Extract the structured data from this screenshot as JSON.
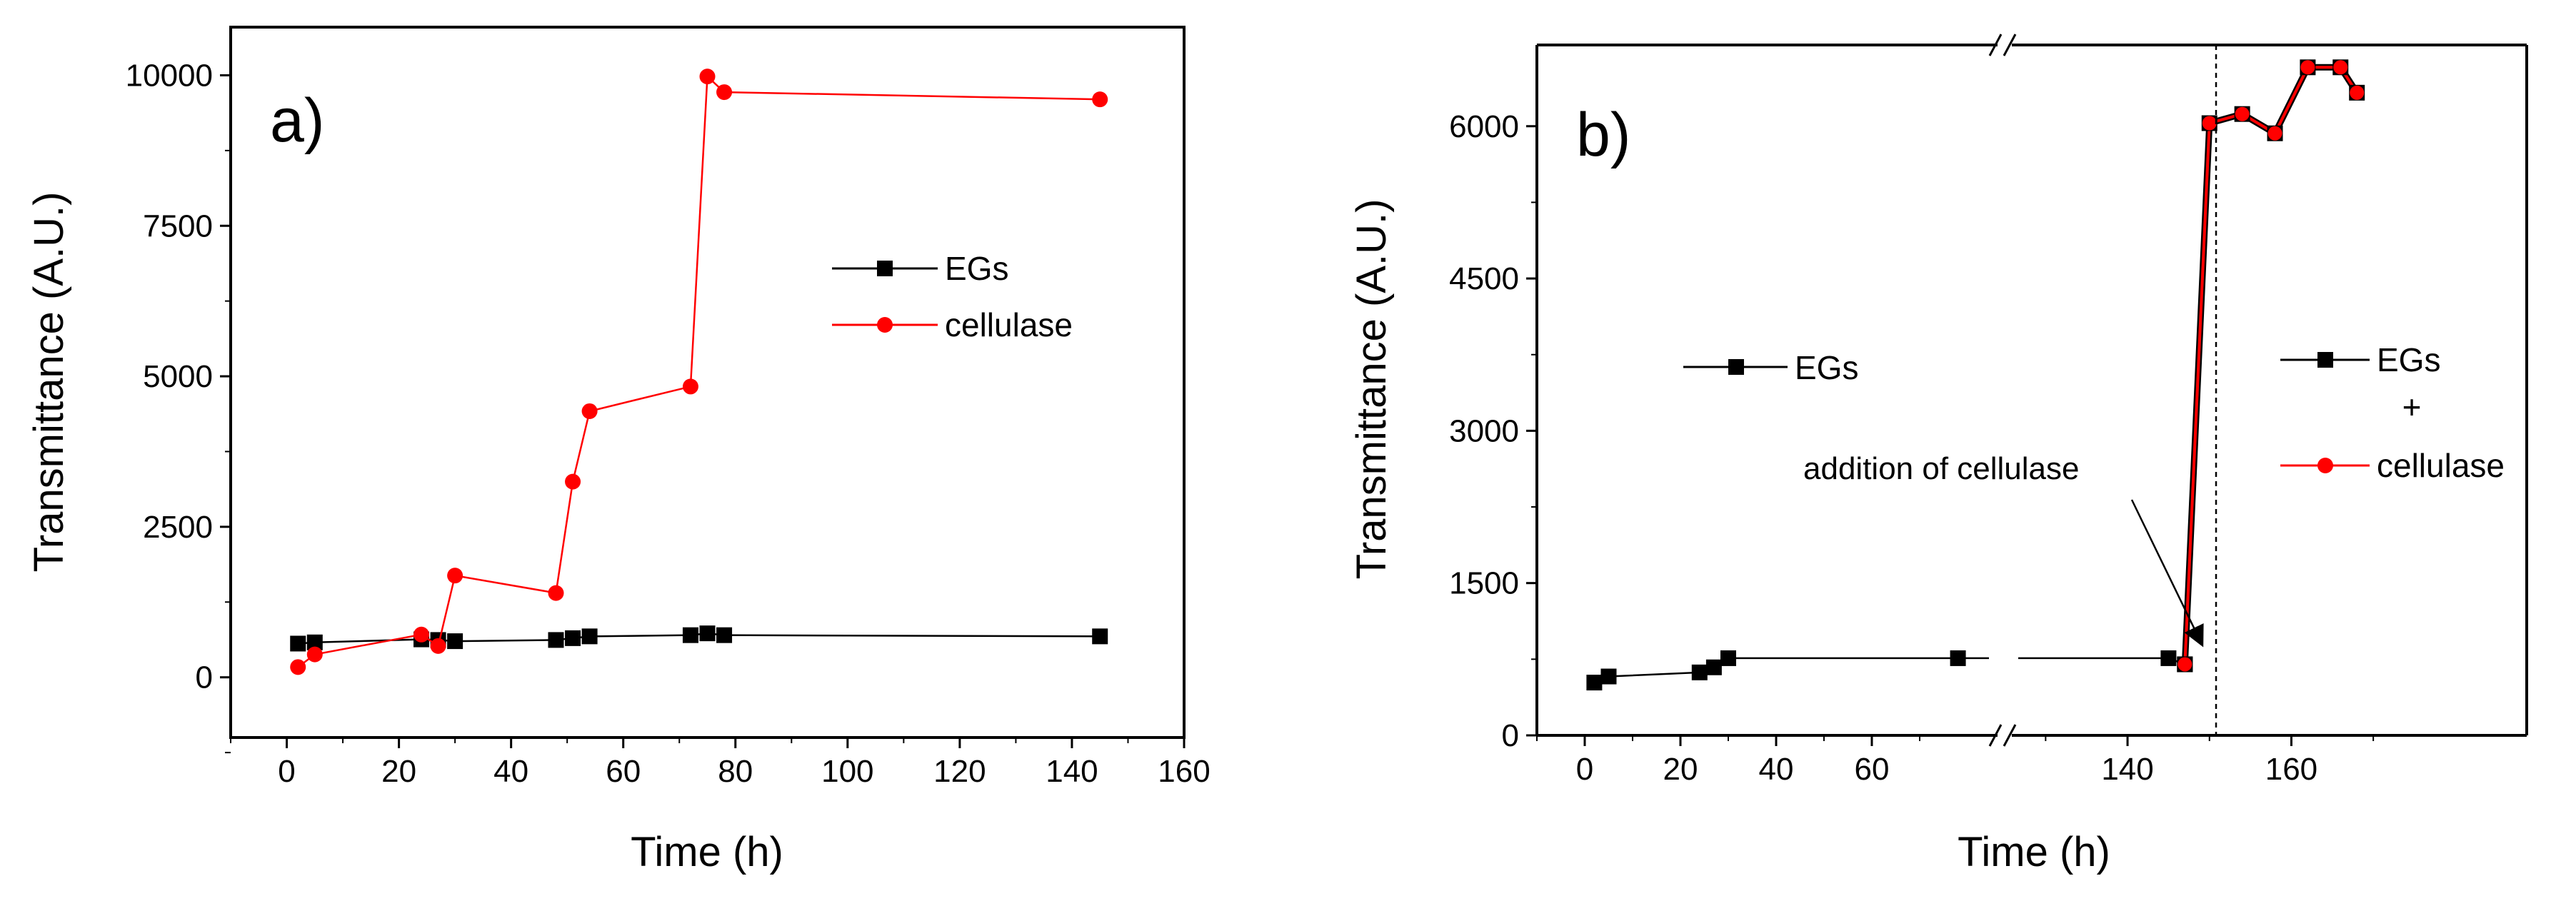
{
  "chart_data": [
    {
      "type": "line",
      "panel_label": "a)",
      "xlabel": "Time (h)",
      "ylabel": "Transmittance (A.U.)",
      "xlim": [
        -10,
        160
      ],
      "ylim": [
        -1000,
        10800
      ],
      "xticks": [
        0,
        20,
        40,
        60,
        80,
        100,
        120,
        140,
        160
      ],
      "yticks": [
        0,
        2500,
        5000,
        7500,
        10000
      ],
      "legend_position": "right-middle",
      "series": [
        {
          "name": "EGs",
          "color": "#000000",
          "marker": "square",
          "x": [
            2,
            5,
            24,
            27,
            30,
            48,
            51,
            54,
            72,
            75,
            78,
            145
          ],
          "y": [
            560,
            580,
            630,
            620,
            600,
            620,
            650,
            680,
            700,
            730,
            700,
            680
          ]
        },
        {
          "name": "cellulase",
          "color": "#ff0000",
          "marker": "circle",
          "x": [
            2,
            5,
            24,
            27,
            30,
            48,
            51,
            54,
            72,
            75,
            78,
            145
          ],
          "y": [
            170,
            380,
            710,
            520,
            1690,
            1400,
            3250,
            4420,
            4830,
            9980,
            9720,
            9600
          ]
        }
      ]
    },
    {
      "type": "line",
      "panel_label": "b)",
      "xlabel": "Time (h)",
      "ylabel": "Transmittance (A.U.)",
      "xticks": [
        0,
        20,
        40,
        60,
        140,
        160
      ],
      "yticks": [
        0,
        1500,
        3000,
        4500,
        6000
      ],
      "ylim": [
        0,
        6800
      ],
      "x_axis_break": [
        85,
        125
      ],
      "legend_left_label": "EGs",
      "legend_right": [
        "EGs",
        "+",
        "cellulase"
      ],
      "annotation": "addition of cellulase",
      "cellulase_addition_time": 147,
      "series": [
        {
          "name": "EGs",
          "color": "#000000",
          "marker": "square",
          "x": [
            2,
            5,
            24,
            27,
            30,
            78,
            145,
            147
          ],
          "y": [
            520,
            580,
            620,
            670,
            760,
            760,
            760,
            700
          ]
        },
        {
          "name": "EGs + cellulase",
          "color": "#ff0000",
          "marker": "circle",
          "x": [
            147,
            150,
            154,
            158,
            162,
            166,
            168
          ],
          "y": [
            700,
            6030,
            6120,
            5930,
            6580,
            6580,
            6330
          ]
        }
      ]
    }
  ]
}
